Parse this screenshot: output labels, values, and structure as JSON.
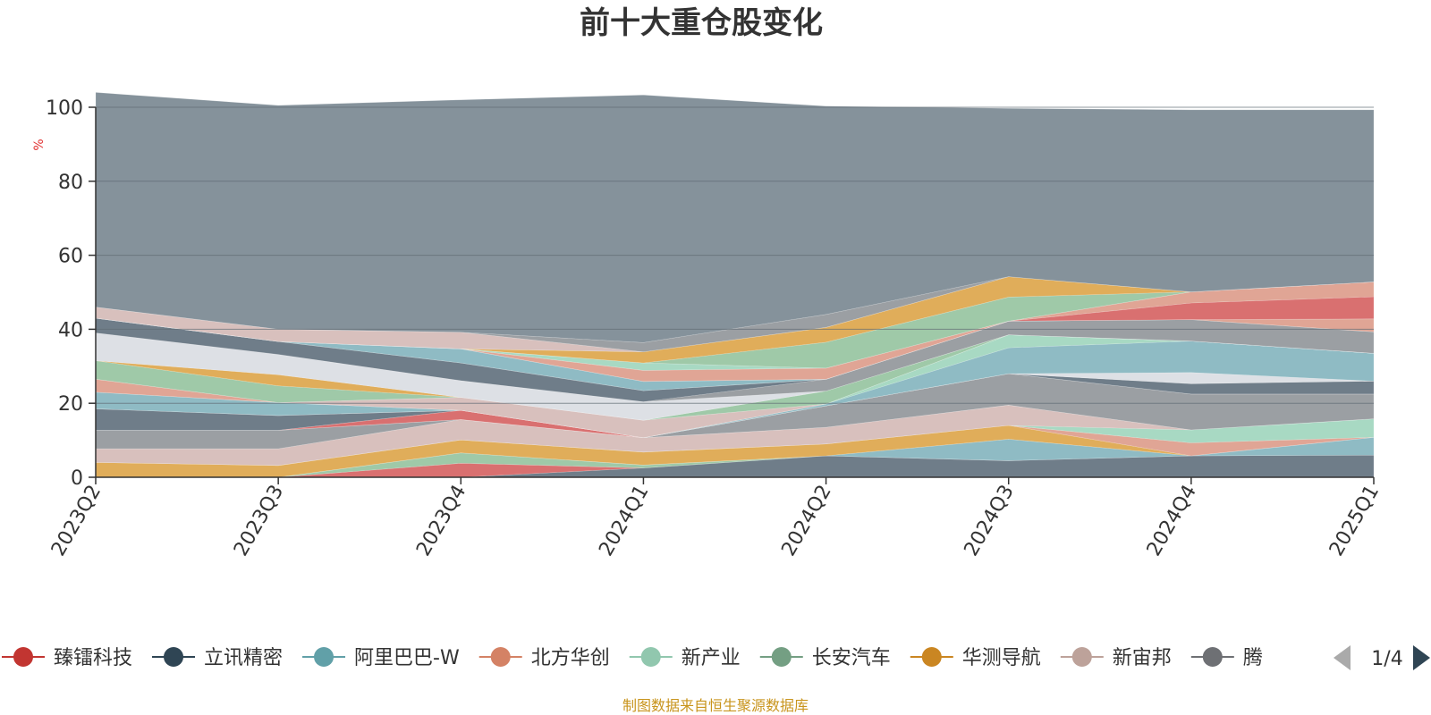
{
  "chart_data": {
    "type": "area",
    "title": "前十大重仓股变化",
    "ylabel": "%",
    "ylim": [
      0,
      100
    ],
    "yticks": [
      0,
      20,
      40,
      60,
      80,
      100
    ],
    "grid": true,
    "stacked": true,
    "categories": [
      "2023Q2",
      "2023Q3",
      "2023Q4",
      "2024Q1",
      "2024Q2",
      "2024Q3",
      "2024Q4",
      "2025Q1"
    ],
    "series": [
      {
        "name": "",
        "color": "#6f7d89",
        "values": [
          0,
          0,
          0,
          2.5,
          5.8,
          4.5,
          5.8,
          6.0
        ]
      },
      {
        "name": "",
        "color": "#d97070",
        "values": [
          0,
          0,
          3.8,
          0,
          0,
          0,
          0,
          0
        ]
      },
      {
        "name": "",
        "color": "#9fc9a8",
        "values": [
          0,
          0,
          2.8,
          0.8,
          0,
          0,
          0,
          0
        ]
      },
      {
        "name": "",
        "color": "#8fbbc4",
        "values": [
          0,
          0,
          0,
          0,
          0,
          5.8,
          0,
          4.8
        ]
      },
      {
        "name": "",
        "color": "#e0ad5a",
        "values": [
          4.0,
          3.2,
          3.5,
          3.5,
          3.2,
          3.7,
          0,
          0
        ]
      },
      {
        "name": "",
        "color": "#e0a595",
        "values": [
          0,
          0,
          0,
          0,
          0,
          0,
          3.5,
          0
        ]
      },
      {
        "name": "",
        "color": "#a8d9c3",
        "values": [
          0,
          0,
          0,
          0,
          0,
          0,
          3.5,
          5.0
        ]
      },
      {
        "name": "",
        "color": "#d8c0bd",
        "values": [
          3.7,
          4.5,
          5.5,
          3.9,
          4.5,
          5.5,
          0,
          0
        ]
      },
      {
        "name": "",
        "color": "#9b9fa3",
        "values": [
          5.0,
          5.0,
          0,
          0,
          0,
          0,
          0,
          0
        ]
      },
      {
        "name": "",
        "color": "#9b9fa3",
        "values": [
          0,
          0,
          0,
          0,
          5.8,
          8.5,
          9.7,
          6.7
        ]
      },
      {
        "name": "",
        "color": "#d97070",
        "values": [
          0,
          0,
          2.5,
          0,
          0,
          0,
          0,
          0
        ]
      },
      {
        "name": "",
        "color": "#6f7d89",
        "values": [
          5.8,
          4.0,
          0,
          0,
          0,
          0,
          2.8,
          3.5
        ]
      },
      {
        "name": "",
        "color": "#8fbbc4",
        "values": [
          0,
          0,
          0,
          0,
          0,
          0,
          0,
          0
        ]
      },
      {
        "name": "",
        "color": "#dde0e5",
        "values": [
          0,
          0,
          0,
          0,
          0,
          0,
          3.0,
          0
        ]
      },
      {
        "name": "",
        "color": "#8fbbc4",
        "values": [
          4.5,
          3.5,
          0,
          0,
          0.5,
          7.0,
          8.5,
          7.5
        ]
      },
      {
        "name": "",
        "color": "#a8d9c3",
        "values": [
          0,
          0,
          0,
          0,
          0,
          3.5,
          0,
          0
        ]
      },
      {
        "name": "",
        "color": "#e0a595",
        "values": [
          3.5,
          0,
          0,
          0,
          0,
          0,
          0,
          0
        ]
      },
      {
        "name": "",
        "color": "#d8c0bd",
        "values": [
          0,
          0,
          3.5,
          4.7,
          0,
          0,
          0,
          0
        ]
      },
      {
        "name": "",
        "color": "#9fc9a8",
        "values": [
          5.0,
          4.5,
          0,
          0,
          3.5,
          0,
          0,
          0
        ]
      },
      {
        "name": "",
        "color": "#e0ad5a",
        "values": [
          0,
          3.0,
          0,
          0,
          0,
          0,
          0,
          0
        ]
      },
      {
        "name": "",
        "color": "#dde0e5",
        "values": [
          7.5,
          5.5,
          4.5,
          5.0,
          0,
          0,
          0,
          0
        ]
      },
      {
        "name": "",
        "color": "#9b9fa3",
        "values": [
          0,
          0,
          0,
          0,
          3.2,
          3.7,
          5.8,
          5.8
        ]
      },
      {
        "name": "",
        "color": "#6f7d89",
        "values": [
          4.0,
          3.5,
          4.8,
          3.0,
          0,
          0,
          0,
          0
        ]
      },
      {
        "name": "",
        "color": "#e0a595",
        "values": [
          0,
          0,
          0,
          0,
          0,
          0,
          0,
          3.5
        ]
      },
      {
        "name": "",
        "color": "#8fbbc4",
        "values": [
          0,
          0,
          3.8,
          2.5,
          0,
          0,
          0,
          0
        ]
      },
      {
        "name": "",
        "color": "#d97070",
        "values": [
          0,
          0,
          0,
          0,
          0,
          0,
          4.5,
          6.0
        ]
      },
      {
        "name": "",
        "color": "#e0a595",
        "values": [
          0,
          0,
          0,
          3.0,
          3.0,
          0,
          3.0,
          4.0
        ]
      },
      {
        "name": "",
        "color": "#a8d9c3",
        "values": [
          0,
          0,
          0,
          2.0,
          0,
          0,
          0,
          0
        ]
      },
      {
        "name": "",
        "color": "#9fc9a8",
        "values": [
          0,
          0,
          0,
          0,
          7.0,
          6.5,
          0,
          0
        ]
      },
      {
        "name": "",
        "color": "#e0ad5a",
        "values": [
          0,
          0,
          0,
          3.0,
          4.0,
          5.5,
          0,
          0
        ]
      },
      {
        "name": "",
        "color": "#d8c0bd",
        "values": [
          3.0,
          3.3,
          4.5,
          0,
          0,
          0,
          0,
          0
        ]
      },
      {
        "name": "",
        "color": "#9b9fa3",
        "values": [
          0,
          0,
          0,
          2.5,
          3.5,
          0,
          0,
          0
        ]
      },
      {
        "name": "",
        "color": "#85929b",
        "values": [
          58.0,
          60.5,
          62.8,
          66.9,
          56.3,
          45.5,
          49.2,
          46.5
        ]
      }
    ],
    "legend": {
      "position": "bottom",
      "items": [
        {
          "name": "臻镭科技",
          "color": "#c23531"
        },
        {
          "name": "立讯精密",
          "color": "#2f4554"
        },
        {
          "name": "阿里巴巴-W",
          "color": "#61a0a8"
        },
        {
          "name": "北方华创",
          "color": "#d48265"
        },
        {
          "name": "新产业",
          "color": "#91c7ae"
        },
        {
          "name": "长安汽车",
          "color": "#749f83"
        },
        {
          "name": "华测导航",
          "color": "#ca8622"
        },
        {
          "name": "新宙邦",
          "color": "#bda29a"
        },
        {
          "name": "腾",
          "color": "#6e7074"
        }
      ],
      "page": "1/4"
    },
    "source": "制图数据来自恒生聚源数据库"
  }
}
